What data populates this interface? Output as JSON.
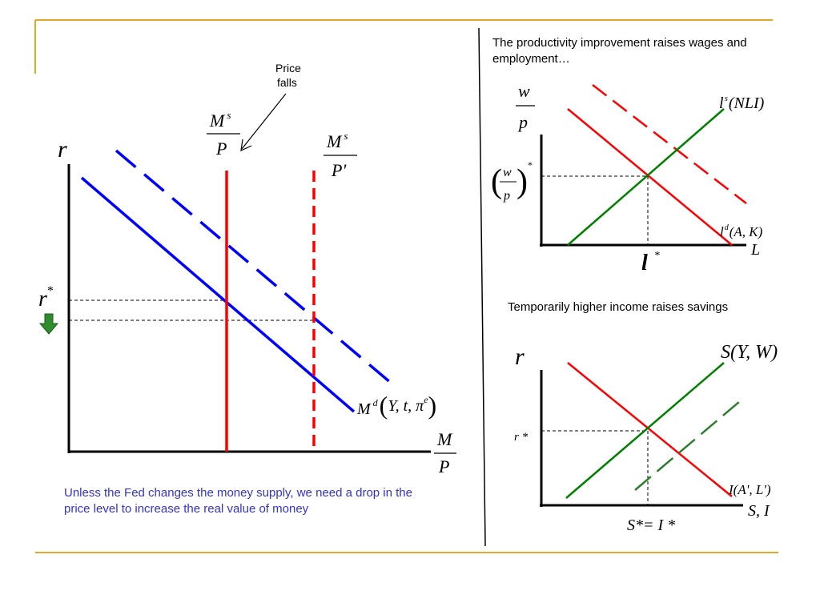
{
  "slide": {
    "accent_color": "#e0a826",
    "note": "Unless  the Fed changes the money supply, we need a drop in the price level to increase the real value of money"
  },
  "left_chart": {
    "y_label": "r",
    "r_star": {
      "base": "r",
      "sup": "*"
    },
    "x_label": {
      "num": "M",
      "den": "P"
    },
    "ms_label": {
      "num": "M",
      "num_sup": "s",
      "den": "P"
    },
    "ms_prime_label": {
      "num": "M",
      "num_sup": "s",
      "den": "P'"
    },
    "annotation": {
      "line1": "Price",
      "line2": "falls"
    },
    "md_label": {
      "base": "M",
      "sup": "d",
      "open": "(",
      "args": "Y, t, ",
      "pi": "π",
      "pi_sup": "e",
      "close": ")"
    },
    "colors": {
      "demand": "#0000ff",
      "supply": "#ff0000",
      "arrow": "#2e8b2e"
    }
  },
  "top_right": {
    "caption": "The productivity improvement raises wages and employment…",
    "y_label": {
      "num": "w",
      "den": "p"
    },
    "wage_star": {
      "num": "w",
      "den": "p",
      "sup": "*"
    },
    "x_label": "L",
    "l_star": {
      "base": "l",
      "sup": "*"
    },
    "ls_label": {
      "base": "l",
      "sup": "s",
      "paren": "(NLI)"
    },
    "ld_label": {
      "base": "l",
      "sup": "d",
      "paren": "(A, K)"
    },
    "colors": {
      "supply": "#008000",
      "demand": "#ff0000"
    }
  },
  "bottom_right": {
    "caption": "Temporarily higher income raises savings",
    "y_label": "r",
    "r_star": "r *",
    "x_label": "S, I",
    "eq_label": "S*= I *",
    "s_label": "S(Y, W)",
    "i_label": "I(A', L')",
    "colors": {
      "saving": "#008000",
      "investment": "#ff0000",
      "saving_new": "#2e7d2e"
    }
  }
}
